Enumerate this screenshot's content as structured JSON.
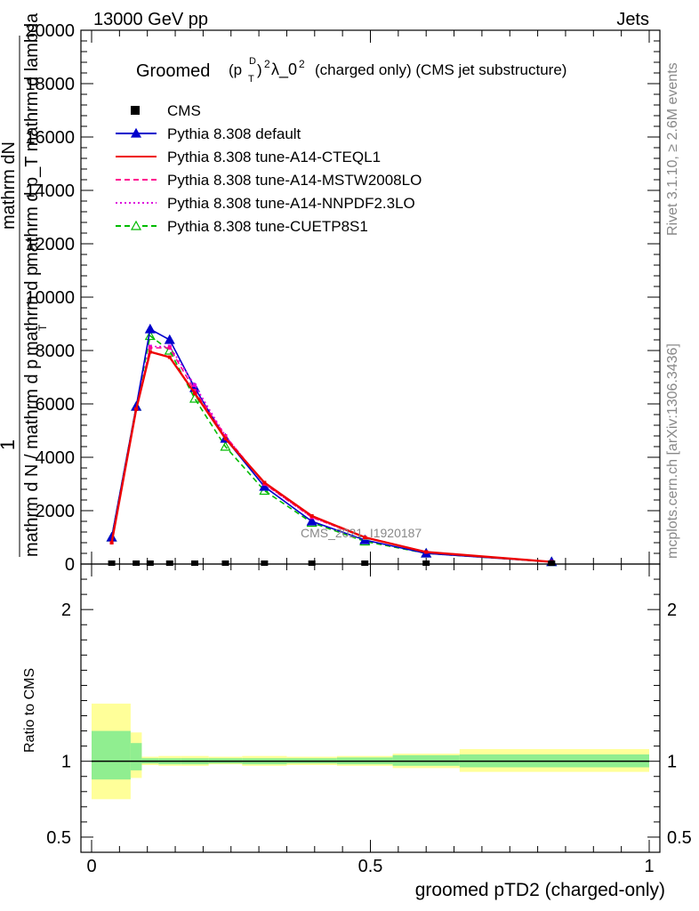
{
  "header": {
    "energy": "13000 GeV pp",
    "process": "Jets"
  },
  "side": {
    "rivet": "Rivet 3.1.10, ≥ 2.6M events",
    "mcplots": "mcplots.cern.ch [arXiv:1306.3436]"
  },
  "watermark": "CMS_2021_I1920187",
  "chart_data": {
    "type": "line",
    "title": {
      "pre": "Groomed",
      "mid": "λ_0",
      "post": "(charged only) (CMS jet substructure)"
    },
    "ylabel": "mathrm dN / mathrm d p_T mathrm d lambda",
    "ylabel_parts": {
      "one": "1",
      "top": "mathrm dN",
      "num": "mathrm d N / mathrm d p",
      "den": "mathrm d p",
      "ext": "mathrm d p_T mathrm d lambda",
      "sub": "T"
    },
    "xlabel": "groomed pTD2 (charged-only)",
    "ratio_ylabel": "Ratio to CMS",
    "xlim": [
      0,
      1
    ],
    "ylim": [
      0,
      20000
    ],
    "ratio_ylim": [
      0.4,
      2.3
    ],
    "y_ticks": [
      "0",
      "2000",
      "4000",
      "6000",
      "8000",
      "10000",
      "12000",
      "14000",
      "16000",
      "18000",
      "20000"
    ],
    "y_tick_values": [
      0,
      2000,
      4000,
      6000,
      8000,
      10000,
      12000,
      14000,
      16000,
      18000,
      20000
    ],
    "x_ticks": [
      "0",
      "0.5",
      "1"
    ],
    "x_tick_values": [
      0,
      0.5,
      1
    ],
    "ratio_ticks": [
      "0.5",
      "1",
      "2"
    ],
    "ratio_tick_values": [
      0.5,
      1,
      2
    ],
    "x": [
      0.036,
      0.08,
      0.105,
      0.14,
      0.185,
      0.24,
      0.31,
      0.395,
      0.49,
      0.6,
      0.825
    ],
    "series": [
      {
        "name": "CMS",
        "color": "#000000",
        "marker": "square",
        "values": [
          0,
          0,
          0,
          0,
          0,
          0,
          0,
          0,
          0,
          0,
          0
        ]
      },
      {
        "name": "Pythia 8.308 default",
        "color": "#0000cc",
        "style": "solid",
        "marker": "triangle-filled",
        "values": [
          1000,
          5900,
          8800,
          8400,
          6600,
          4700,
          2900,
          1600,
          900,
          400,
          80
        ]
      },
      {
        "name": "Pythia 8.308 tune-A14-CTEQL1",
        "color": "#ee0000",
        "style": "solid",
        "marker": "none",
        "values": [
          800,
          5800,
          7950,
          7750,
          6400,
          4700,
          3050,
          1800,
          1000,
          450,
          80
        ]
      },
      {
        "name": "Pythia 8.308 tune-A14-MSTW2008LO",
        "color": "#ff0090",
        "style": "dashed",
        "marker": "none",
        "values": [
          800,
          5800,
          8100,
          8100,
          6500,
          4800,
          3000,
          1750,
          1000,
          450,
          80
        ]
      },
      {
        "name": "Pythia 8.308 tune-A14-NNPDF2.3LO",
        "color": "#dd00dd",
        "style": "dotted",
        "marker": "none",
        "values": [
          800,
          5800,
          8150,
          8150,
          6700,
          4800,
          3000,
          1750,
          1000,
          450,
          80
        ]
      },
      {
        "name": "Pythia 8.308 tune-CUETP8S1",
        "color": "#00bb00",
        "style": "dashed",
        "marker": "triangle-open",
        "values": [
          1000,
          5900,
          8550,
          8000,
          6200,
          4400,
          2750,
          1550,
          850,
          400,
          80
        ]
      }
    ],
    "ratio_bands": [
      {
        "x0": 0.0,
        "x1": 0.07,
        "yel": [
          0.75,
          1.38
        ],
        "grn": [
          0.88,
          1.2
        ]
      },
      {
        "x0": 0.07,
        "x1": 0.09,
        "yel": [
          0.89,
          1.19
        ],
        "grn": [
          0.94,
          1.12
        ]
      },
      {
        "x0": 0.09,
        "x1": 0.12,
        "yel": [
          0.975,
          1.03
        ],
        "grn": [
          0.985,
          1.02
        ]
      },
      {
        "x0": 0.12,
        "x1": 0.16,
        "yel": [
          0.97,
          1.035
        ],
        "grn": [
          0.98,
          1.02
        ]
      },
      {
        "x0": 0.16,
        "x1": 0.21,
        "yel": [
          0.97,
          1.035
        ],
        "grn": [
          0.98,
          1.02
        ]
      },
      {
        "x0": 0.21,
        "x1": 0.27,
        "yel": [
          0.98,
          1.03
        ],
        "grn": [
          0.985,
          1.02
        ]
      },
      {
        "x0": 0.27,
        "x1": 0.35,
        "yel": [
          0.97,
          1.035
        ],
        "grn": [
          0.98,
          1.02
        ]
      },
      {
        "x0": 0.35,
        "x1": 0.44,
        "yel": [
          0.975,
          1.03
        ],
        "grn": [
          0.985,
          1.02
        ]
      },
      {
        "x0": 0.44,
        "x1": 0.54,
        "yel": [
          0.97,
          1.035
        ],
        "grn": [
          0.98,
          1.025
        ]
      },
      {
        "x0": 0.54,
        "x1": 0.66,
        "yel": [
          0.955,
          1.05
        ],
        "grn": [
          0.97,
          1.04
        ]
      },
      {
        "x0": 0.66,
        "x1": 1.0,
        "yel": [
          0.93,
          1.08
        ],
        "grn": [
          0.96,
          1.045
        ]
      }
    ]
  }
}
